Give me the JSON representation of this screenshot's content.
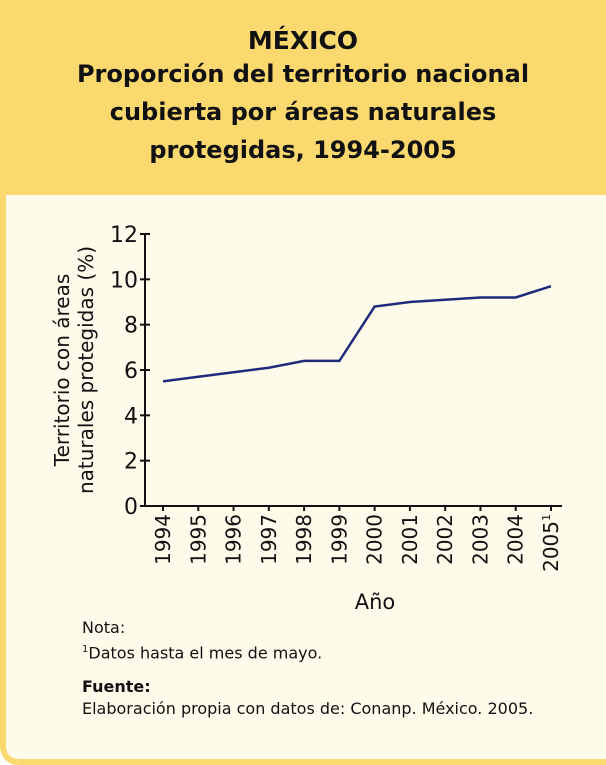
{
  "chart_data": {
    "type": "line",
    "title": "MÉXICO",
    "subtitle_lines": [
      "Proporción del territorio nacional",
      "cubierta por áreas naturales",
      "protegidas, 1994-2005"
    ],
    "y_label_lines": [
      "Territorio con áreas",
      "naturales protegidas (%)"
    ],
    "x_label": "Año",
    "categories": [
      "1994",
      "1995",
      "1996",
      "1997",
      "1998",
      "1999",
      "2000",
      "2001",
      "2002",
      "2003",
      "2004",
      "2005"
    ],
    "footnote_mark": "1",
    "values": [
      5.5,
      5.7,
      5.9,
      6.1,
      6.4,
      6.4,
      8.8,
      9.0,
      9.1,
      9.2,
      9.2,
      9.7
    ],
    "color": "#1f2a7a",
    "ylim": [
      0,
      12
    ],
    "yticks": [
      0,
      2,
      4,
      6,
      8,
      10,
      12
    ],
    "note_label": "Nota:",
    "note": "Datos hasta el mes de mayo.",
    "source_label": "Fuente:",
    "source": "Elaboración propia con datos de: Conanp. México. 2005."
  }
}
